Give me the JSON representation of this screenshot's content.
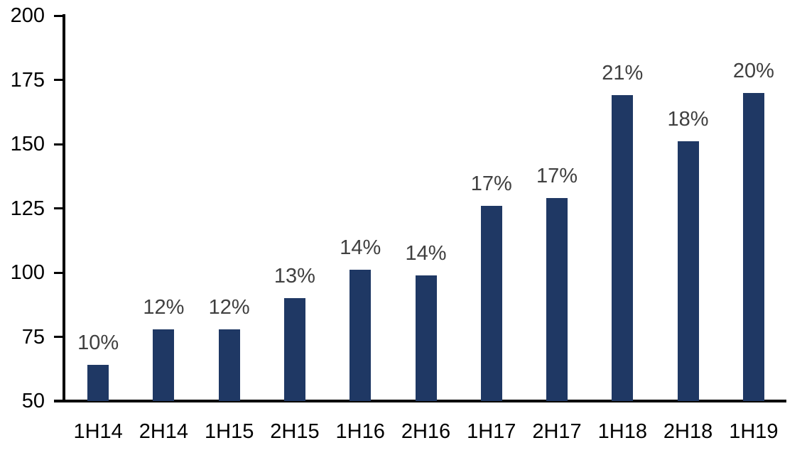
{
  "chart_data": {
    "type": "bar",
    "categories": [
      "1H14",
      "2H14",
      "1H15",
      "2H15",
      "1H16",
      "2H16",
      "1H17",
      "2H17",
      "1H18",
      "2H18",
      "1H19"
    ],
    "values": [
      64,
      78,
      78,
      90,
      101,
      99,
      126,
      129,
      169,
      151,
      170
    ],
    "bar_labels": [
      "10%",
      "12%",
      "12%",
      "13%",
      "14%",
      "14%",
      "17%",
      "17%",
      "21%",
      "18%",
      "20%"
    ],
    "title": "",
    "xlabel": "",
    "ylabel": "",
    "ylim": [
      50,
      200
    ],
    "yticks": [
      50,
      75,
      100,
      125,
      150,
      175,
      200
    ],
    "grid": false,
    "legend": false,
    "colors": {
      "bar": "#1f3864",
      "bar_label": "#404040",
      "tick_label": "#000000",
      "axis": "#000000",
      "background": "#ffffff"
    }
  }
}
